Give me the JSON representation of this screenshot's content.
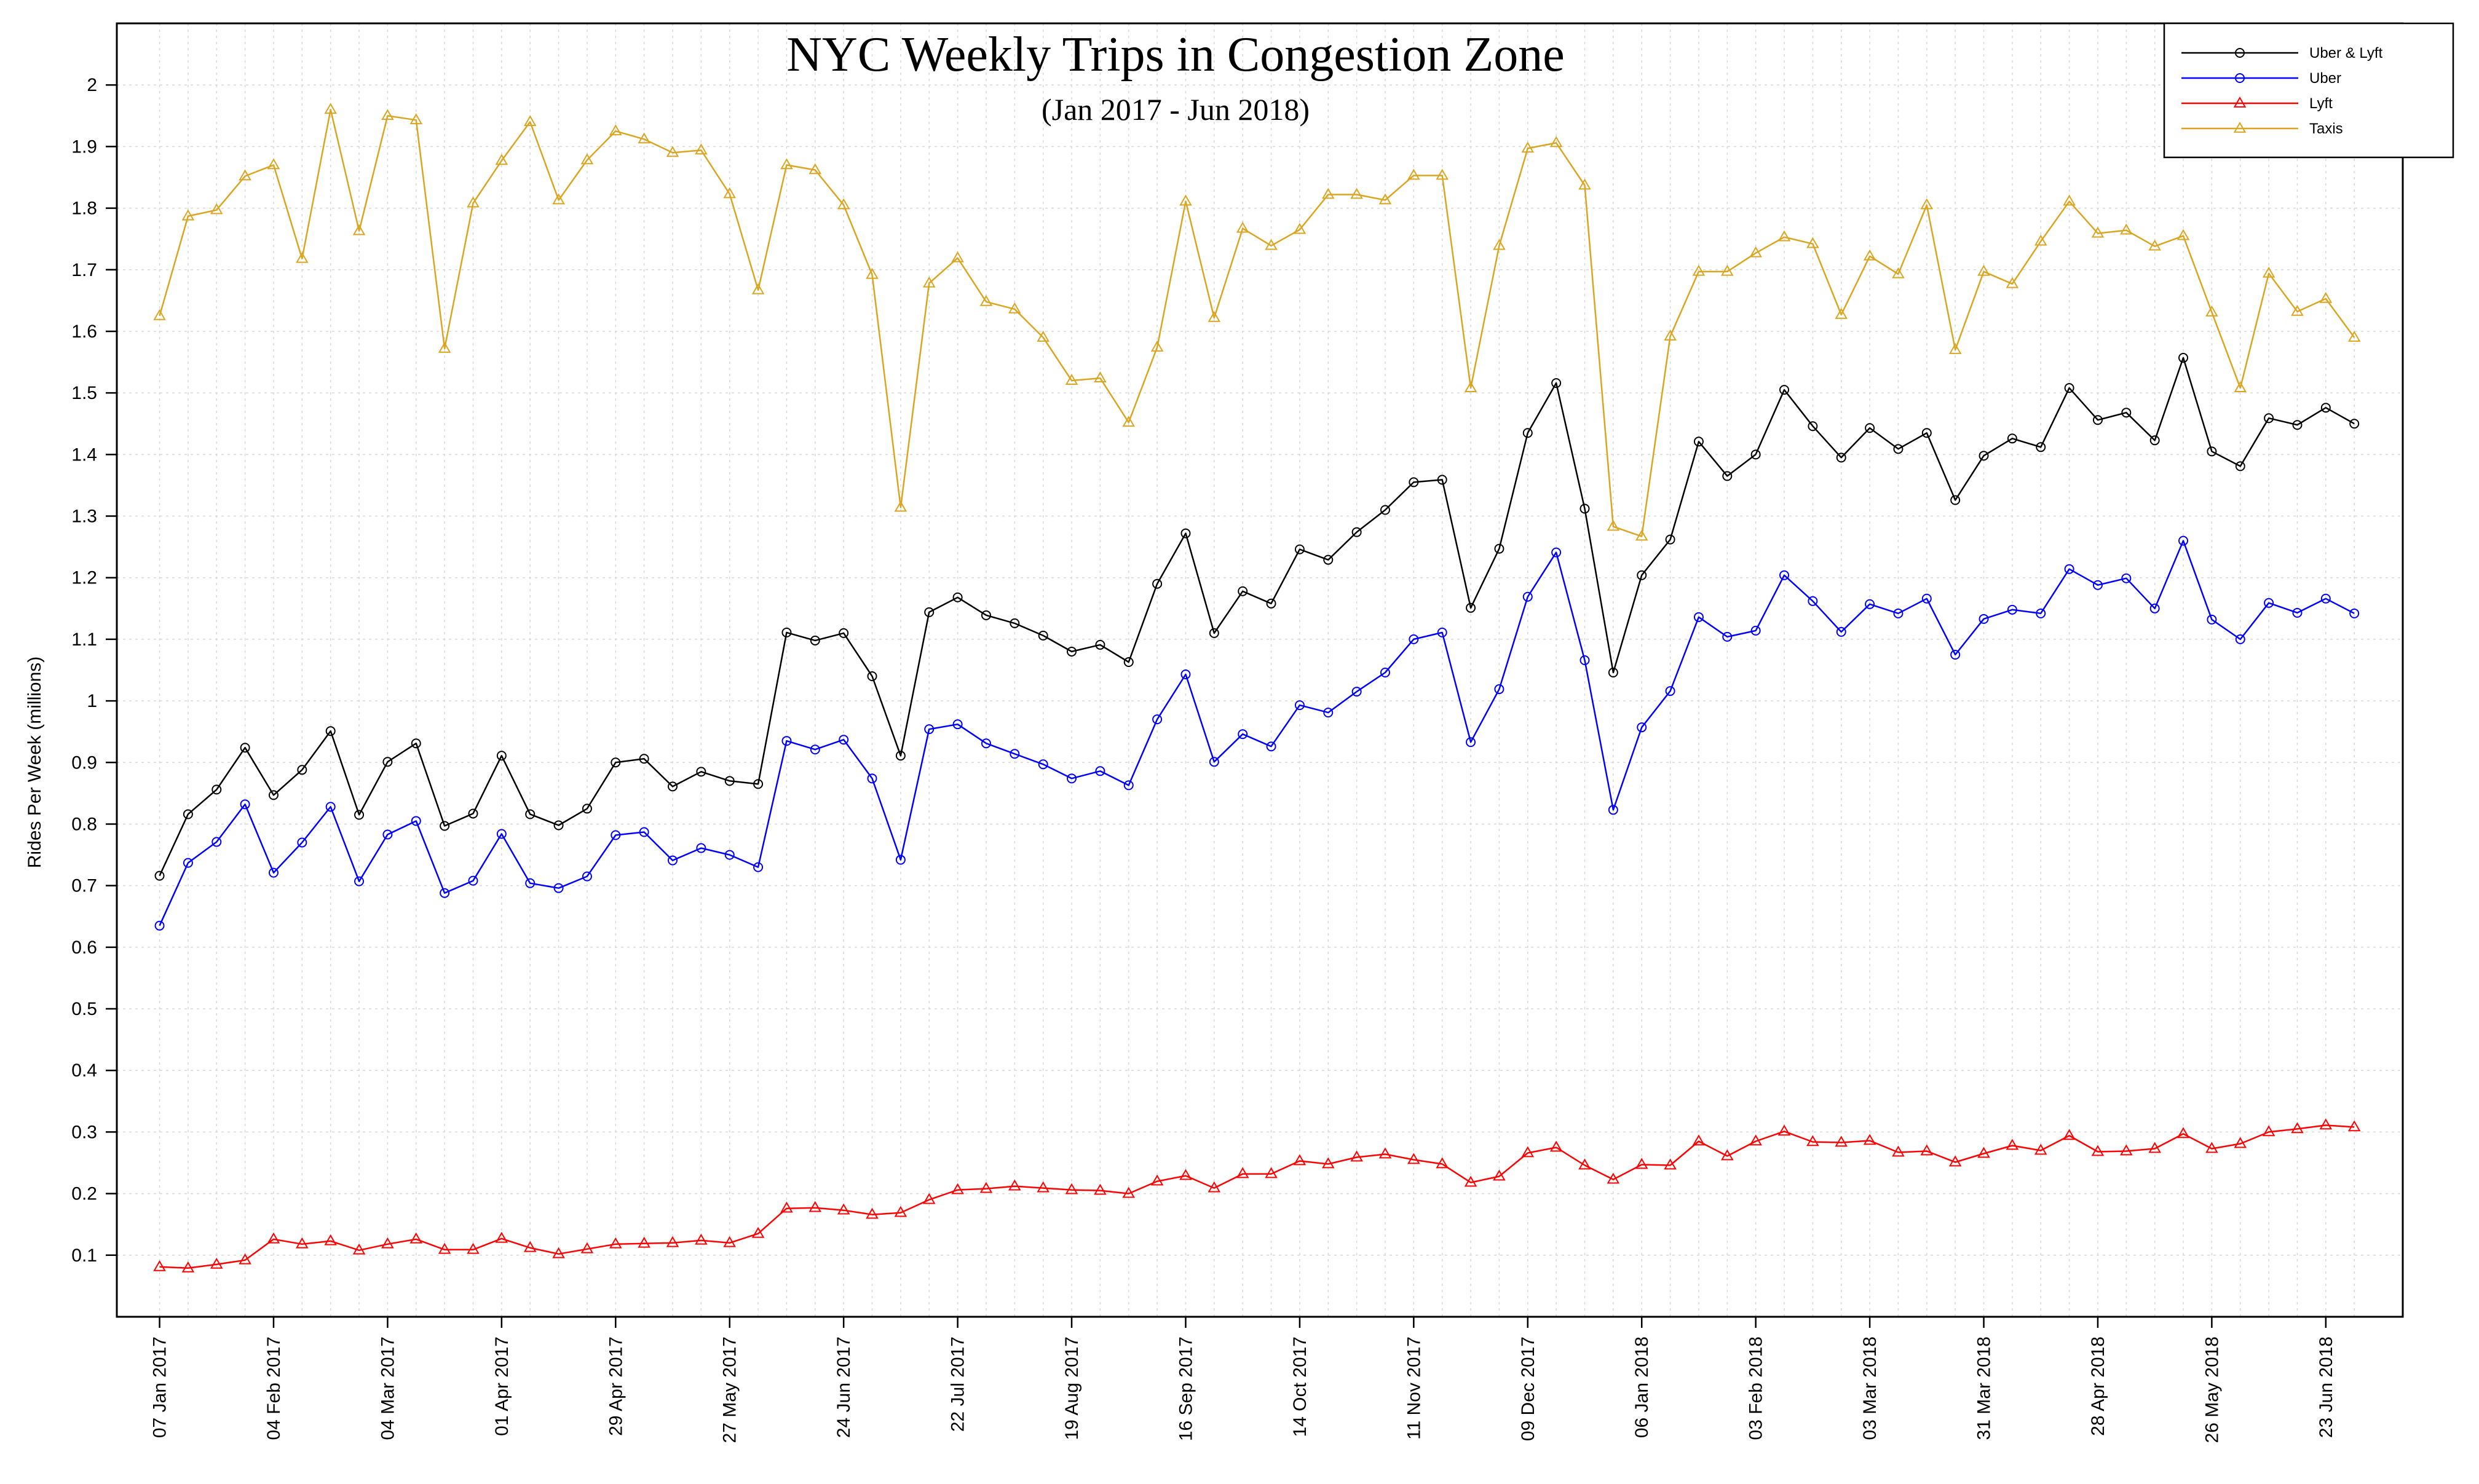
{
  "chart_data": {
    "type": "line",
    "title": "NYC Weekly Trips in Congestion Zone",
    "subtitle": "(Jan 2017 - Jun 2018)",
    "xlabel": "",
    "ylabel": "Rides Per Week (millions)",
    "ylim": [
      0,
      2.1
    ],
    "yticks": [
      0.1,
      0.2,
      0.3,
      0.4,
      0.5,
      0.6,
      0.7,
      0.8,
      0.9,
      1,
      1.1,
      1.2,
      1.3,
      1.4,
      1.5,
      1.6,
      1.7,
      1.8,
      1.9,
      2
    ],
    "ytick_labels": [
      "0.1",
      "0.2",
      "0.3",
      "0.4",
      "0.5",
      "0.6",
      "0.7",
      "0.8",
      "0.9",
      "1",
      "1.1",
      "1.2",
      "1.3",
      "1.4",
      "1.5",
      "1.6",
      "1.7",
      "1.8",
      "1.9",
      "2"
    ],
    "x_weeks": 78,
    "xtick_week_index": [
      0,
      4,
      8,
      12,
      16,
      20,
      24,
      28,
      32,
      36,
      40,
      44,
      48,
      52,
      56,
      60,
      64,
      68,
      72,
      76
    ],
    "xtick_labels": [
      "07 Jan 2017",
      "04 Feb 2017",
      "04 Mar 2017",
      "01 Apr 2017",
      "29 Apr 2017",
      "27 May 2017",
      "24 Jun 2017",
      "22 Jul 2017",
      "19 Aug 2017",
      "16 Sep 2017",
      "14 Oct 2017",
      "11 Nov 2017",
      "09 Dec 2017",
      "06 Jan 2018",
      "03 Feb 2018",
      "03 Mar 2018",
      "31 Mar 2018",
      "28 Apr 2018",
      "26 May 2018",
      "23 Jun 2018"
    ],
    "grid": true,
    "legend_position": "top-right",
    "series": [
      {
        "name": "Uber & Lyft",
        "color": "#000000",
        "marker": "circle",
        "values": [
          0.716,
          0.816,
          0.856,
          0.924,
          0.847,
          0.888,
          0.951,
          0.815,
          0.901,
          0.931,
          0.797,
          0.817,
          0.911,
          0.816,
          0.798,
          0.825,
          0.9,
          0.906,
          0.861,
          0.885,
          0.87,
          0.865,
          1.111,
          1.098,
          1.11,
          1.04,
          0.911,
          1.144,
          1.168,
          1.139,
          1.126,
          1.106,
          1.08,
          1.091,
          1.063,
          1.19,
          1.272,
          1.11,
          1.178,
          1.158,
          1.246,
          1.229,
          1.274,
          1.31,
          1.355,
          1.359,
          1.151,
          1.247,
          1.435,
          1.516,
          1.312,
          1.046,
          1.204,
          1.262,
          1.421,
          1.365,
          1.4,
          1.505,
          1.446,
          1.395,
          1.443,
          1.409,
          1.435,
          1.326,
          1.398,
          1.426,
          1.412,
          1.508,
          1.456,
          1.468,
          1.423,
          1.557,
          1.405,
          1.381,
          1.459,
          1.448,
          1.476,
          1.45
        ]
      },
      {
        "name": "Uber",
        "color": "#0000ff",
        "marker": "circle",
        "values": [
          0.635,
          0.737,
          0.771,
          0.832,
          0.721,
          0.77,
          0.828,
          0.707,
          0.783,
          0.805,
          0.688,
          0.708,
          0.784,
          0.704,
          0.696,
          0.715,
          0.782,
          0.787,
          0.741,
          0.761,
          0.75,
          0.73,
          0.935,
          0.921,
          0.937,
          0.874,
          0.742,
          0.954,
          0.962,
          0.931,
          0.914,
          0.897,
          0.874,
          0.886,
          0.863,
          0.97,
          1.043,
          0.901,
          0.946,
          0.926,
          0.993,
          0.981,
          1.015,
          1.046,
          1.1,
          1.111,
          0.933,
          1.019,
          1.169,
          1.241,
          1.066,
          0.823,
          0.957,
          1.016,
          1.136,
          1.104,
          1.114,
          1.204,
          1.162,
          1.112,
          1.157,
          1.142,
          1.166,
          1.075,
          1.133,
          1.148,
          1.142,
          1.214,
          1.188,
          1.199,
          1.15,
          1.26,
          1.132,
          1.1,
          1.159,
          1.143,
          1.166,
          1.142
        ]
      },
      {
        "name": "Lyft",
        "color": "#ff0000",
        "marker": "triangle",
        "values": [
          0.081,
          0.079,
          0.085,
          0.092,
          0.126,
          0.118,
          0.123,
          0.108,
          0.118,
          0.126,
          0.109,
          0.109,
          0.127,
          0.112,
          0.102,
          0.11,
          0.118,
          0.119,
          0.12,
          0.124,
          0.12,
          0.135,
          0.176,
          0.177,
          0.173,
          0.166,
          0.169,
          0.19,
          0.206,
          0.208,
          0.212,
          0.209,
          0.206,
          0.205,
          0.2,
          0.22,
          0.229,
          0.209,
          0.232,
          0.232,
          0.253,
          0.248,
          0.259,
          0.264,
          0.255,
          0.248,
          0.218,
          0.228,
          0.266,
          0.275,
          0.246,
          0.223,
          0.247,
          0.246,
          0.285,
          0.261,
          0.285,
          0.301,
          0.284,
          0.283,
          0.286,
          0.267,
          0.269,
          0.251,
          0.265,
          0.278,
          0.27,
          0.294,
          0.268,
          0.269,
          0.273,
          0.297,
          0.273,
          0.281,
          0.3,
          0.305,
          0.311,
          0.308
        ]
      },
      {
        "name": "Taxis",
        "color": "#daa520",
        "marker": "triangle",
        "values": [
          1.625,
          1.787,
          1.797,
          1.852,
          1.87,
          1.718,
          1.96,
          1.763,
          1.95,
          1.943,
          1.572,
          1.808,
          1.877,
          1.94,
          1.813,
          1.878,
          1.925,
          1.912,
          1.89,
          1.894,
          1.823,
          1.667,
          1.87,
          1.862,
          1.805,
          1.692,
          1.314,
          1.678,
          1.719,
          1.648,
          1.636,
          1.59,
          1.52,
          1.524,
          1.452,
          1.574,
          1.811,
          1.622,
          1.767,
          1.739,
          1.765,
          1.822,
          1.822,
          1.813,
          1.853,
          1.853,
          1.508,
          1.739,
          1.897,
          1.906,
          1.837,
          1.283,
          1.267,
          1.592,
          1.697,
          1.697,
          1.727,
          1.753,
          1.742,
          1.627,
          1.722,
          1.693,
          1.805,
          1.57,
          1.697,
          1.677,
          1.746,
          1.811,
          1.759,
          1.764,
          1.738,
          1.755,
          1.631,
          1.508,
          1.694,
          1.632,
          1.653,
          1.59
        ]
      }
    ]
  }
}
